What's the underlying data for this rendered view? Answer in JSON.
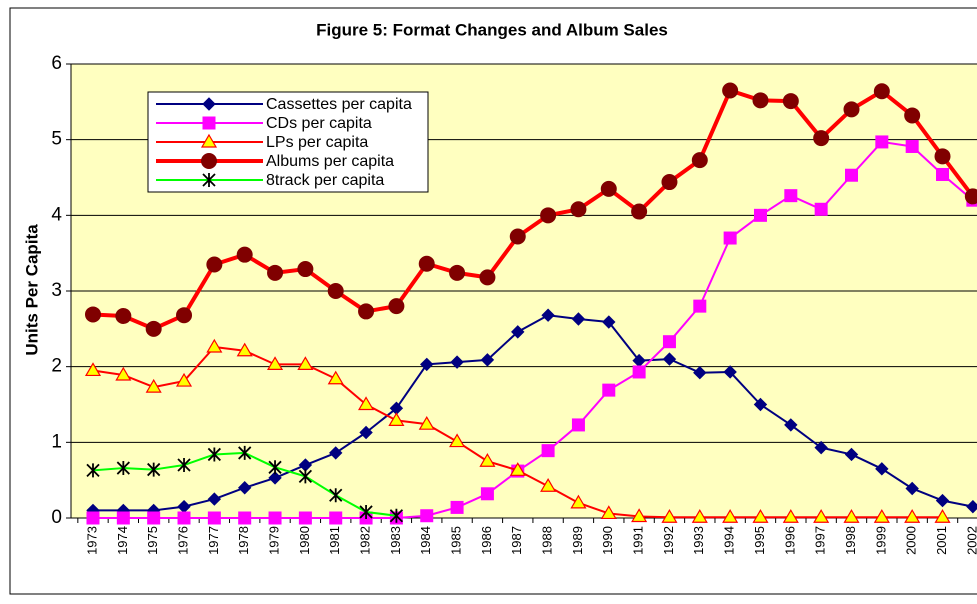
{
  "chart_data": {
    "type": "line",
    "title": "Figure 5: Format Changes and Album Sales",
    "y_label": "Units Per Capita",
    "categories": [
      "1973",
      "1974",
      "1975",
      "1976",
      "1977",
      "1978",
      "1979",
      "1980",
      "1981",
      "1982",
      "1983",
      "1984",
      "1985",
      "1986",
      "1987",
      "1988",
      "1989",
      "1990",
      "1991",
      "1992",
      "1993",
      "1994",
      "1995",
      "1996",
      "1997",
      "1998",
      "1999",
      "2000",
      "2001",
      "2002"
    ],
    "series": [
      {
        "name": "Cassettes per capita",
        "color": "#000080",
        "marker": "diamond",
        "marker_color": "#000080",
        "values": [
          0.1,
          0.1,
          0.1,
          0.15,
          0.25,
          0.4,
          0.53,
          0.7,
          0.86,
          1.13,
          1.45,
          2.03,
          2.06,
          2.09,
          2.46,
          2.68,
          2.63,
          2.59,
          2.08,
          2.1,
          1.92,
          1.93,
          1.5,
          1.23,
          0.93,
          0.84,
          0.65,
          0.39,
          0.23,
          0.15
        ]
      },
      {
        "name": "CDs per capita",
        "color": "#ff00ff",
        "marker": "square",
        "marker_color": "#ff00ff",
        "values": [
          0,
          0,
          0,
          0,
          0,
          0,
          0,
          0,
          0,
          0,
          0,
          0.03,
          0.14,
          0.32,
          0.62,
          0.89,
          1.23,
          1.69,
          1.93,
          2.33,
          2.8,
          3.7,
          4.0,
          4.26,
          4.08,
          4.53,
          4.97,
          4.91,
          4.54,
          4.2
        ]
      },
      {
        "name": "LPs per capita",
        "color": "#ff0000",
        "marker": "triangle",
        "marker_color": "#ffff00",
        "values": [
          1.95,
          1.89,
          1.73,
          1.81,
          2.26,
          2.21,
          2.03,
          2.03,
          1.84,
          1.5,
          1.29,
          1.24,
          1.01,
          0.75,
          0.63,
          0.42,
          0.2,
          0.06,
          0.02,
          0.01,
          0.01,
          0.01,
          0.01,
          0.01,
          0.01,
          0.01,
          0.01,
          0.01,
          0.01,
          null
        ]
      },
      {
        "name": "Albums per capita",
        "color": "#ff0000",
        "marker": "circle",
        "marker_color": "#800000",
        "values": [
          2.69,
          2.67,
          2.5,
          2.68,
          3.35,
          3.48,
          3.24,
          3.29,
          3.0,
          2.73,
          2.8,
          3.36,
          3.24,
          3.18,
          3.72,
          4.0,
          4.08,
          4.35,
          4.05,
          4.44,
          4.73,
          5.65,
          5.52,
          5.51,
          5.02,
          5.4,
          5.64,
          5.32,
          4.78,
          4.25
        ]
      },
      {
        "name": "8track per capita",
        "color": "#00ff00",
        "marker": "asterisk",
        "marker_color": "#000000",
        "values": [
          0.63,
          0.66,
          0.64,
          0.7,
          0.84,
          0.86,
          0.67,
          0.55,
          0.3,
          0.08,
          0.03,
          null,
          null,
          null,
          null,
          null,
          null,
          null,
          null,
          null,
          null,
          null,
          null,
          null,
          null,
          null,
          null,
          null,
          null,
          null
        ]
      }
    ],
    "ylim": [
      0,
      6
    ],
    "yticks": [
      0,
      1,
      2,
      3,
      4,
      5,
      6
    ],
    "grid": true,
    "legend": "upper left",
    "plot_background": "#ffffc0"
  }
}
